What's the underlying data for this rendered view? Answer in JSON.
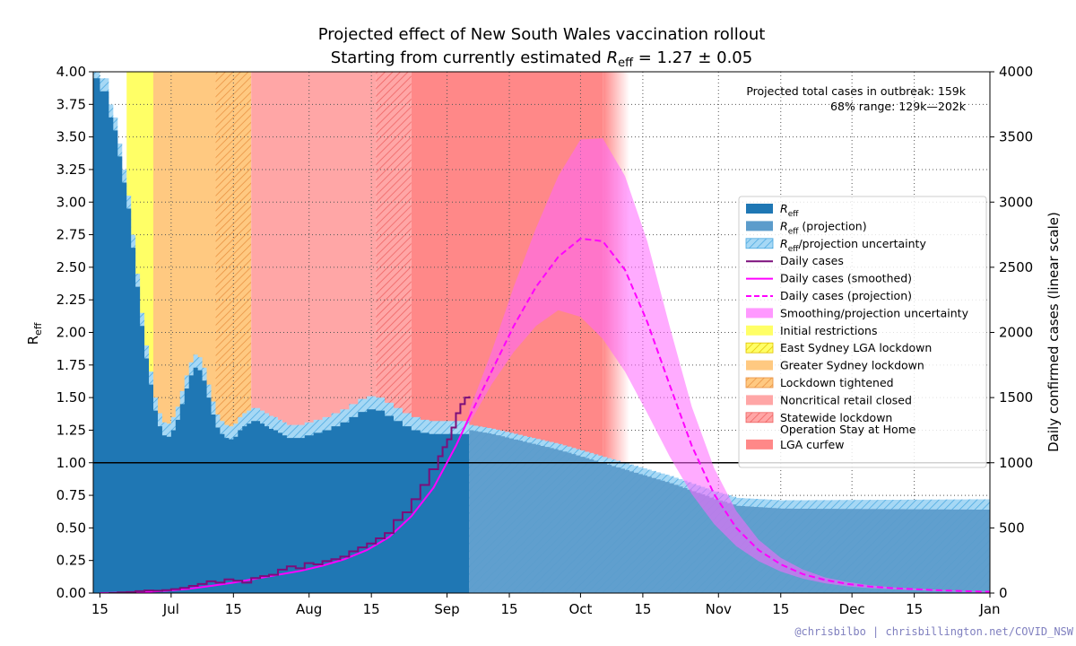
{
  "chart_data": {
    "type": "area",
    "title_line1": "Projected effect of New South Wales vaccination rollout",
    "title_line2": "Starting from currently estimated R_eff = 1.27 ± 0.05",
    "ylabel_left": "R_eff",
    "ylabel_right": "Daily confirmed cases (linear scale)",
    "y_left_ticks": [
      "0.00",
      "0.25",
      "0.50",
      "0.75",
      "1.00",
      "1.25",
      "1.50",
      "1.75",
      "2.00",
      "2.25",
      "2.50",
      "2.75",
      "3.00",
      "3.25",
      "3.50",
      "3.75",
      "4.00"
    ],
    "y_right_ticks": [
      "0",
      "500",
      "1000",
      "1500",
      "2000",
      "2500",
      "3000",
      "3500",
      "4000"
    ],
    "x_ticks": [
      {
        "label": "15",
        "day": 0
      },
      {
        "label": "Jul",
        "day": 16
      },
      {
        "label": "15",
        "day": 30
      },
      {
        "label": "Aug",
        "day": 47
      },
      {
        "label": "15",
        "day": 61
      },
      {
        "label": "Sep",
        "day": 78
      },
      {
        "label": "15",
        "day": 92
      },
      {
        "label": "Oct",
        "day": 108
      },
      {
        "label": "15",
        "day": 122
      },
      {
        "label": "Nov",
        "day": 139
      },
      {
        "label": "15",
        "day": 153
      },
      {
        "label": "Dec",
        "day": 169
      },
      {
        "label": "15",
        "day": 183
      },
      {
        "label": "Jan",
        "day": 200
      }
    ],
    "x_range_days": [
      -1.5,
      200
    ],
    "ylim_left": [
      0,
      4
    ],
    "ylim_right": [
      0,
      4000
    ],
    "today_day": 83,
    "reference_line_reff": 1.0,
    "restriction_periods": [
      {
        "name": "Initial restrictions",
        "start": 6,
        "end": 12,
        "color": "#ffff66"
      },
      {
        "name": "Greater Sydney lockdown",
        "start": 12,
        "end": 26,
        "color": "#ffc981"
      },
      {
        "name": "Lockdown tightened",
        "start": 26,
        "end": 34,
        "color": "#ffc981",
        "hatch": true
      },
      {
        "name": "Noncritical retail closed",
        "start": 34,
        "end": 62,
        "color": "#ffa6a6"
      },
      {
        "name": "Statewide lockdown Operation Stay at Home",
        "start": 62,
        "end": 70,
        "color": "#ffa6a6",
        "hatch": true
      },
      {
        "name": "LGA curfew",
        "start": 70,
        "end": 113,
        "color": "#ff8888",
        "fade_to": 119
      }
    ],
    "reff_history": {
      "name": "R_eff",
      "days": [
        -2,
        0,
        2,
        3,
        4,
        5,
        6,
        7,
        8,
        9,
        10,
        11,
        12,
        13,
        14,
        15,
        16,
        17,
        18,
        19,
        20,
        21,
        22,
        23,
        24,
        25,
        26,
        27,
        28,
        29,
        30,
        31,
        32,
        33,
        34,
        35,
        36,
        37,
        38,
        39,
        40,
        41,
        42,
        44,
        46,
        48,
        50,
        52,
        54,
        56,
        58,
        60,
        61,
        62,
        64,
        66,
        68,
        70,
        72,
        74,
        76,
        78,
        80,
        82,
        83
      ],
      "values": [
        4.0,
        3.9,
        3.7,
        3.6,
        3.4,
        3.2,
        3.0,
        2.7,
        2.4,
        2.1,
        1.85,
        1.65,
        1.45,
        1.33,
        1.26,
        1.25,
        1.3,
        1.38,
        1.5,
        1.62,
        1.72,
        1.78,
        1.76,
        1.68,
        1.55,
        1.42,
        1.32,
        1.27,
        1.24,
        1.23,
        1.25,
        1.3,
        1.33,
        1.35,
        1.37,
        1.37,
        1.35,
        1.33,
        1.31,
        1.3,
        1.28,
        1.26,
        1.24,
        1.24,
        1.26,
        1.28,
        1.3,
        1.33,
        1.36,
        1.4,
        1.44,
        1.46,
        1.46,
        1.45,
        1.41,
        1.37,
        1.33,
        1.3,
        1.28,
        1.27,
        1.27,
        1.27,
        1.27,
        1.27,
        1.27
      ],
      "uncertainty": 0.05
    },
    "reff_projection": {
      "name": "R_eff (projection)",
      "days": [
        83,
        88,
        93,
        98,
        103,
        108,
        113,
        118,
        123,
        128,
        133,
        138,
        143,
        148,
        153,
        200
      ],
      "values": [
        1.27,
        1.24,
        1.2,
        1.16,
        1.12,
        1.07,
        1.02,
        0.97,
        0.92,
        0.87,
        0.81,
        0.75,
        0.7,
        0.69,
        0.68,
        0.68
      ],
      "uncertainty_start": 0.02,
      "uncertainty_end": 0.04
    },
    "daily_cases": {
      "name": "Daily cases",
      "days": [
        2,
        4,
        6,
        8,
        10,
        12,
        14,
        16,
        18,
        20,
        22,
        24,
        26,
        28,
        30,
        32,
        34,
        36,
        38,
        40,
        42,
        44,
        46,
        48,
        50,
        52,
        54,
        56,
        58,
        60,
        62,
        64,
        66,
        68,
        70,
        72,
        74,
        76,
        77,
        78,
        79,
        80,
        81,
        82,
        83
      ],
      "values": [
        0,
        5,
        8,
        15,
        20,
        18,
        22,
        30,
        40,
        55,
        70,
        90,
        80,
        105,
        95,
        80,
        115,
        130,
        140,
        180,
        205,
        190,
        230,
        220,
        245,
        260,
        280,
        320,
        350,
        380,
        420,
        460,
        560,
        620,
        720,
        830,
        950,
        1050,
        1120,
        1180,
        1270,
        1380,
        1450,
        1500,
        1510
      ]
    },
    "daily_cases_smoothed": {
      "name": "Daily cases (smoothed)",
      "days": [
        0,
        5,
        10,
        15,
        20,
        25,
        30,
        35,
        40,
        45,
        50,
        55,
        60,
        65,
        70,
        75,
        80,
        83
      ],
      "values": [
        0,
        3,
        8,
        18,
        33,
        55,
        80,
        110,
        140,
        170,
        210,
        260,
        330,
        430,
        590,
        810,
        1130,
        1350
      ]
    },
    "daily_cases_projection": {
      "name": "Daily cases (projection)",
      "days": [
        83,
        88,
        93,
        98,
        103,
        108,
        113,
        118,
        123,
        128,
        133,
        138,
        143,
        148,
        153,
        158,
        163,
        168,
        173,
        178,
        183,
        188,
        193,
        200
      ],
      "values": [
        1350,
        1700,
        2050,
        2350,
        2580,
        2720,
        2700,
        2480,
        2080,
        1600,
        1130,
        760,
        500,
        330,
        220,
        145,
        100,
        70,
        50,
        38,
        30,
        22,
        16,
        10
      ],
      "upper": [
        1400,
        1850,
        2350,
        2800,
        3200,
        3480,
        3490,
        3200,
        2700,
        2050,
        1430,
        960,
        630,
        410,
        270,
        180,
        120,
        85,
        60,
        45,
        35,
        26,
        18,
        12
      ],
      "lower": [
        1300,
        1600,
        1850,
        2050,
        2170,
        2120,
        1950,
        1700,
        1380,
        1050,
        760,
        530,
        360,
        245,
        165,
        110,
        75,
        52,
        38,
        29,
        22,
        16,
        11,
        8
      ]
    },
    "legend": [
      {
        "label": "R_eff",
        "style": "fill",
        "color": "#1f77b4"
      },
      {
        "label": "R_eff (projection)",
        "style": "fill",
        "color": "#5c9ccb"
      },
      {
        "label": "R_eff/projection uncertainty",
        "style": "hatch",
        "color": "#a6d8f5",
        "edge": "#4aa8e0"
      },
      {
        "label": "Daily cases",
        "style": "line",
        "color": "#7b0e7b"
      },
      {
        "label": "Daily cases (smoothed)",
        "style": "line",
        "color": "#ff00ff"
      },
      {
        "label": "Daily cases (projection)",
        "style": "dashed",
        "color": "#ff00ff"
      },
      {
        "label": "Smoothing/projection uncertainty",
        "style": "fill",
        "color": "#ff99ff"
      },
      {
        "label": "Initial restrictions",
        "style": "fill",
        "color": "#ffff66"
      },
      {
        "label": "East Sydney LGA lockdown",
        "style": "hatch",
        "color": "#ffff66",
        "edge": "#e0c000"
      },
      {
        "label": "Greater Sydney lockdown",
        "style": "fill",
        "color": "#ffc981"
      },
      {
        "label": "Lockdown tightened",
        "style": "hatch",
        "color": "#ffc981",
        "edge": "#e89040"
      },
      {
        "label": "Noncritical retail closed",
        "style": "fill",
        "color": "#ffa6a6"
      },
      {
        "label": "Statewide lockdown",
        "label2": "Operation Stay at Home",
        "style": "hatch",
        "color": "#ffa6a6",
        "edge": "#ee6060"
      },
      {
        "label": "LGA curfew",
        "style": "fill",
        "color": "#ff8888"
      }
    ],
    "annotation_line1": "Projected total cases in outbreak:  159k",
    "annotation_line2": "68% range:  129k—202k",
    "credit": "@chrisbilbo | chrisbillington.net/COVID_NSW"
  }
}
